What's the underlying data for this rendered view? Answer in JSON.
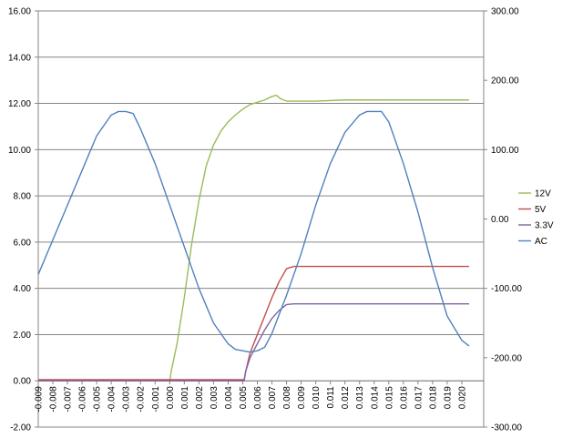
{
  "chart_data": {
    "type": "line",
    "title": "",
    "xlabel": "",
    "ylabel": "",
    "y2label": "",
    "grid": true,
    "legend_position": "right",
    "xlim": [
      -0.009,
      0.0215
    ],
    "ylim": [
      -2,
      16
    ],
    "y2lim": [
      -300,
      300
    ],
    "x_tick_labels": [
      "-0.009",
      "-0.008",
      "-0.007",
      "-0.006",
      "-0.005",
      "-0.004",
      "-0.003",
      "-0.002",
      "-0.001",
      "0.000",
      "0.001",
      "0.002",
      "0.003",
      "0.004",
      "0.005",
      "0.006",
      "0.007",
      "0.008",
      "0.009",
      "0.010",
      "0.011",
      "0.012",
      "0.013",
      "0.014",
      "0.015",
      "0.016",
      "0.017",
      "0.018",
      "0.019",
      "0.020"
    ],
    "y_tick_labels": [
      "-2.00",
      "0.00",
      "2.00",
      "4.00",
      "6.00",
      "8.00",
      "10.00",
      "12.00",
      "14.00",
      "16.00"
    ],
    "y2_tick_labels": [
      "-300.00",
      "-200.00",
      "-100.00",
      "0.00",
      "100.00",
      "200.00",
      "300.00"
    ],
    "series": [
      {
        "name": "12V",
        "axis": "left",
        "color": "#9BBB59",
        "x": [
          -0.009,
          0.0,
          0.0001,
          0.0005,
          0.001,
          0.0015,
          0.002,
          0.0025,
          0.003,
          0.0035,
          0.004,
          0.0045,
          0.005,
          0.0055,
          0.006,
          0.0065,
          0.007,
          0.0073,
          0.0076,
          0.008,
          0.009,
          0.01,
          0.012,
          0.014,
          0.016,
          0.018,
          0.0205
        ],
        "y": [
          0.0,
          0.0,
          0.4,
          1.6,
          3.6,
          5.9,
          7.8,
          9.3,
          10.2,
          10.8,
          11.2,
          11.5,
          11.75,
          11.95,
          12.05,
          12.15,
          12.3,
          12.35,
          12.2,
          12.1,
          12.1,
          12.1,
          12.15,
          12.15,
          12.15,
          12.15,
          12.15
        ]
      },
      {
        "name": "5V",
        "axis": "left",
        "color": "#C0504D",
        "x": [
          -0.009,
          0.0051,
          0.0052,
          0.0055,
          0.006,
          0.0065,
          0.007,
          0.0075,
          0.008,
          0.0085,
          0.009,
          0.012,
          0.016,
          0.0205
        ],
        "y": [
          0.05,
          0.05,
          0.4,
          1.2,
          2.0,
          2.8,
          3.6,
          4.3,
          4.85,
          4.95,
          4.95,
          4.95,
          4.95,
          4.95
        ]
      },
      {
        "name": "3.3V",
        "axis": "left",
        "color": "#8064A2",
        "x": [
          -0.009,
          0.0051,
          0.0052,
          0.0055,
          0.006,
          0.0065,
          0.007,
          0.0075,
          0.008,
          0.0085,
          0.009,
          0.012,
          0.016,
          0.0205
        ],
        "y": [
          0.0,
          0.0,
          0.4,
          1.0,
          1.6,
          2.2,
          2.7,
          3.05,
          3.3,
          3.33,
          3.33,
          3.33,
          3.33,
          3.33
        ]
      },
      {
        "name": "AC",
        "axis": "right",
        "color": "#4F81BD",
        "x": [
          -0.009,
          -0.008,
          -0.007,
          -0.006,
          -0.005,
          -0.004,
          -0.0035,
          -0.003,
          -0.0025,
          -0.002,
          -0.001,
          0.0,
          0.001,
          0.002,
          0.003,
          0.004,
          0.0045,
          0.005,
          0.0055,
          0.006,
          0.0065,
          0.007,
          0.008,
          0.009,
          0.01,
          0.011,
          0.012,
          0.013,
          0.0135,
          0.014,
          0.0145,
          0.015,
          0.016,
          0.017,
          0.018,
          0.019,
          0.02,
          0.0205
        ],
        "y": [
          -80,
          -30,
          20,
          70,
          120,
          150,
          155,
          155,
          152,
          130,
          80,
          20,
          -40,
          -100,
          -150,
          -180,
          -188,
          -190,
          -192,
          -190,
          -185,
          -165,
          -110,
          -50,
          20,
          80,
          125,
          150,
          155,
          155,
          155,
          140,
          80,
          10,
          -70,
          -140,
          -175,
          -183
        ]
      }
    ]
  }
}
